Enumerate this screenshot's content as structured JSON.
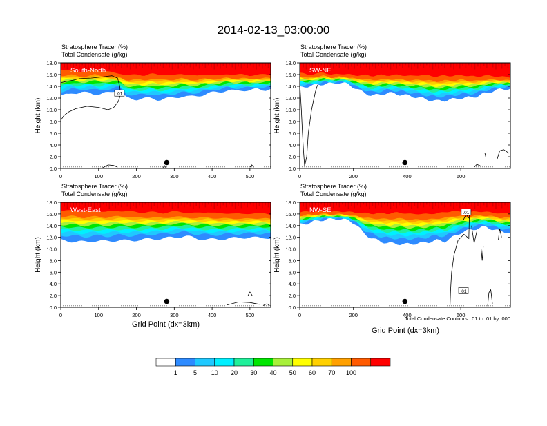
{
  "title": "2014-02-13_03:00:00",
  "chart_data": [
    {
      "type": "heatmap",
      "panel_label": "South-North",
      "subtitle_line1": "Stratosphere Tracer   (%)",
      "subtitle_line2": "Total Condensate   (g/kg)",
      "xlabel": "",
      "ylabel": "Height (km)",
      "xlim": [
        0,
        555
      ],
      "xticks": [
        0,
        100,
        200,
        300,
        400,
        500
      ],
      "ylim": [
        0,
        18
      ],
      "yticks": [
        "0.0",
        "2.0",
        "4.0",
        "6.0",
        "8.0",
        "10.0",
        "12.0",
        "14.0",
        "16.0",
        "18.0"
      ],
      "profile": {
        "x": [
          0,
          15,
          30,
          45,
          60,
          75,
          90,
          105,
          120,
          135,
          150,
          160,
          170,
          180,
          200,
          220,
          240,
          260,
          280,
          300,
          320,
          340,
          360,
          380,
          400,
          420,
          440,
          460,
          480,
          500,
          520,
          540,
          555
        ],
        "top": [
          16.4,
          16.3,
          16.4,
          16.2,
          16.0,
          16.2,
          16.5,
          16.3,
          16.2,
          16.0,
          15.9,
          15.8,
          15.6,
          15.5,
          15.7,
          15.5,
          15.8,
          15.6,
          15.7,
          15.5,
          15.8,
          15.6,
          15.4,
          15.7,
          15.6,
          15.5,
          15.8,
          15.6,
          15.7,
          15.5,
          15.6,
          15.7,
          15.6
        ],
        "base": [
          12.2,
          12.8,
          13.0,
          12.6,
          12.9,
          13.1,
          12.7,
          12.5,
          12.9,
          13.2,
          13.4,
          13.0,
          12.1,
          12.0,
          11.8,
          11.9,
          12.0,
          11.7,
          11.9,
          12.1,
          12.3,
          12.2,
          12.4,
          12.6,
          12.9,
          13.1,
          13.3,
          13.2,
          13.4,
          13.3,
          13.5,
          13.4,
          13.6
        ]
      },
      "condensate_contours": [
        [
          [
            0,
            8.2
          ],
          [
            8,
            9.0
          ],
          [
            20,
            9.6
          ],
          [
            40,
            10.2
          ],
          [
            70,
            10.6
          ],
          [
            100,
            10.4
          ],
          [
            125,
            10.0
          ],
          [
            140,
            10.4
          ],
          [
            152,
            11.4
          ],
          [
            158,
            12.6
          ],
          [
            156,
            14.0
          ],
          [
            150,
            15.4
          ],
          [
            135,
            15.8
          ],
          [
            110,
            15.6
          ],
          [
            80,
            15.4
          ],
          [
            50,
            15.3
          ],
          [
            30,
            15.0
          ],
          [
            12,
            14.8
          ],
          [
            0,
            14.6
          ]
        ],
        [
          [
            110,
            0.1
          ],
          [
            125,
            0.6
          ],
          [
            140,
            0.5
          ],
          [
            150,
            0.2
          ]
        ],
        [
          [
            270,
            0.1
          ],
          [
            274,
            0.5
          ],
          [
            278,
            0.1
          ]
        ],
        [
          [
            500,
            0.2
          ],
          [
            505,
            0.6
          ],
          [
            510,
            0.2
          ]
        ]
      ],
      "contour_labels": [
        {
          "x": 155,
          "y": 12.8,
          "text": ".01"
        }
      ],
      "marker": {
        "x": 280,
        "y": 1.0
      }
    },
    {
      "type": "heatmap",
      "panel_label": "SW-NE",
      "subtitle_line1": "Stratosphere Tracer   (%)",
      "subtitle_line2": "Total Condensate   (g/kg)",
      "xlabel": "",
      "ylabel": "Height (km)",
      "xlim": [
        0,
        785
      ],
      "xticks": [
        0,
        200,
        400,
        600
      ],
      "ylim": [
        0,
        18
      ],
      "yticks": [
        "0.0",
        "2.0",
        "4.0",
        "6.0",
        "8.0",
        "10.0",
        "12.0",
        "14.0",
        "16.0",
        "18.0"
      ],
      "profile": {
        "x": [
          0,
          30,
          60,
          90,
          120,
          150,
          180,
          210,
          240,
          270,
          300,
          330,
          360,
          390,
          420,
          450,
          480,
          510,
          540,
          570,
          600,
          630,
          660,
          690,
          720,
          750,
          785
        ],
        "top": [
          16.0,
          15.6,
          15.8,
          16.0,
          15.6,
          15.8,
          15.7,
          15.5,
          15.6,
          15.4,
          15.6,
          15.5,
          15.6,
          15.5,
          15.4,
          15.6,
          15.5,
          15.3,
          15.5,
          15.4,
          15.6,
          15.4,
          15.3,
          15.5,
          15.4,
          15.3,
          15.2
        ],
        "base": [
          13.8,
          14.0,
          14.2,
          14.4,
          14.5,
          14.6,
          14.4,
          13.6,
          12.9,
          12.4,
          12.6,
          12.9,
          12.7,
          12.5,
          12.3,
          12.0,
          11.7,
          11.5,
          11.6,
          11.8,
          12.0,
          12.1,
          12.3,
          12.8,
          13.2,
          13.5,
          13.6
        ]
      },
      "condensate_contours": [
        [
          [
            0,
            14.6
          ],
          [
            6,
            10.0
          ],
          [
            10,
            6.0
          ],
          [
            14,
            3.0
          ],
          [
            18,
            0.4
          ],
          [
            26,
            2.0
          ],
          [
            32,
            6.0
          ],
          [
            44,
            10.0
          ],
          [
            58,
            13.0
          ],
          [
            66,
            14.2
          ]
        ],
        [
          [
            650,
            0.2
          ],
          [
            660,
            0.7
          ],
          [
            675,
            0.4
          ]
        ],
        [
          [
            735,
            1.5
          ],
          [
            745,
            3.0
          ],
          [
            760,
            3.2
          ],
          [
            780,
            2.6
          ]
        ],
        [
          [
            690,
            2.6
          ],
          [
            693,
            2.0
          ]
        ]
      ],
      "contour_labels": [],
      "marker": {
        "x": 392,
        "y": 1.0
      }
    },
    {
      "type": "heatmap",
      "panel_label": "West-East",
      "subtitle_line1": "Stratosphere Tracer   (%)",
      "subtitle_line2": "Total Condensate   (g/kg)",
      "xlabel": "Grid Point (dx=3km)",
      "ylabel": "Height (km)",
      "xlim": [
        0,
        555
      ],
      "xticks": [
        0,
        100,
        200,
        300,
        400,
        500
      ],
      "ylim": [
        0,
        18
      ],
      "yticks": [
        "0.0",
        "2.0",
        "4.0",
        "6.0",
        "8.0",
        "10.0",
        "12.0",
        "14.0",
        "16.0",
        "18.0"
      ],
      "profile": {
        "x": [
          0,
          30,
          60,
          90,
          120,
          150,
          180,
          210,
          240,
          270,
          300,
          330,
          360,
          390,
          420,
          450,
          480,
          510,
          540,
          555
        ],
        "top": [
          16.1,
          16.3,
          16.0,
          16.2,
          16.0,
          16.2,
          16.1,
          15.9,
          16.0,
          15.8,
          16.1,
          15.9,
          15.8,
          16.0,
          15.7,
          15.8,
          15.6,
          15.8,
          15.7,
          15.6
        ],
        "base": [
          11.5,
          11.3,
          11.2,
          11.4,
          11.3,
          11.5,
          11.4,
          11.6,
          11.7,
          11.8,
          12.0,
          12.2,
          11.8,
          11.6,
          11.7,
          11.8,
          12.0,
          11.9,
          12.0,
          11.8
        ]
      },
      "condensate_contours": [
        [
          [
            440,
            0.4
          ],
          [
            470,
            0.9
          ],
          [
            500,
            0.8
          ],
          [
            525,
            0.5
          ]
        ],
        [
          [
            495,
            2.0
          ],
          [
            500,
            2.6
          ],
          [
            506,
            2.0
          ]
        ],
        [
          [
            535,
            0.3
          ],
          [
            545,
            0.6
          ],
          [
            552,
            0.3
          ]
        ]
      ],
      "contour_labels": [],
      "marker": {
        "x": 280,
        "y": 1.0
      }
    },
    {
      "type": "heatmap",
      "panel_label": "NW-SE",
      "subtitle_line1": "Stratosphere Tracer   (%)",
      "subtitle_line2": "Total Condensate   (g/kg)",
      "xlabel": "Grid Point (dx=3km)",
      "ylabel": "Height (km)",
      "footnote": "Total Condensate Contours: .01 to .01 by .000",
      "xlim": [
        0,
        785
      ],
      "xticks": [
        0,
        200,
        400,
        600
      ],
      "ylim": [
        0,
        18
      ],
      "yticks": [
        "0.0",
        "2.0",
        "4.0",
        "6.0",
        "8.0",
        "10.0",
        "12.0",
        "14.0",
        "16.0",
        "18.0"
      ],
      "profile": {
        "x": [
          0,
          30,
          60,
          90,
          120,
          150,
          180,
          210,
          240,
          270,
          300,
          330,
          360,
          390,
          420,
          450,
          480,
          510,
          540,
          570,
          600,
          630,
          660,
          690,
          720,
          750,
          785
        ],
        "top": [
          15.9,
          16.1,
          16.0,
          16.2,
          16.0,
          16.1,
          16.0,
          15.9,
          15.8,
          15.7,
          15.8,
          15.7,
          15.9,
          15.8,
          15.6,
          15.7,
          15.6,
          15.8,
          15.9,
          16.2,
          16.0,
          15.9,
          16.1,
          16.0,
          15.9,
          15.7,
          15.8
        ],
        "base": [
          14.2,
          14.4,
          14.8,
          15.0,
          15.2,
          15.1,
          15.0,
          14.2,
          12.6,
          11.8,
          11.3,
          11.0,
          10.9,
          10.8,
          10.9,
          11.0,
          11.2,
          11.5,
          11.3,
          12.0,
          12.8,
          13.2,
          13.5,
          13.8,
          13.4,
          13.0,
          12.8
        ]
      },
      "condensate_contours": [
        [
          [
            560,
            0.2
          ],
          [
            562,
            3.0
          ],
          [
            566,
            6.0
          ],
          [
            575,
            9.0
          ],
          [
            590,
            11.5
          ],
          [
            612,
            12.5
          ],
          [
            630,
            11.8
          ],
          [
            632,
            15.8
          ]
        ],
        [
          [
            610,
            15.0
          ],
          [
            620,
            15.9
          ],
          [
            632,
            15.2
          ]
        ],
        [
          [
            640,
            14.0
          ],
          [
            650,
            11.0
          ],
          [
            660,
            13.0
          ]
        ],
        [
          [
            675,
            10.5
          ],
          [
            680,
            8.0
          ],
          [
            684,
            10.5
          ]
        ],
        [
          [
            700,
            0.2
          ],
          [
            705,
            2.5
          ],
          [
            712,
            3.0
          ],
          [
            718,
            0.6
          ]
        ],
        [
          [
            740,
            11.5
          ],
          [
            745,
            13.5
          ],
          [
            752,
            12.0
          ]
        ]
      ],
      "contour_labels": [
        {
          "x": 610,
          "y": 2.8,
          "text": ".01"
        },
        {
          "x": 620,
          "y": 16.3,
          "text": ".01"
        }
      ],
      "marker": {
        "x": 392,
        "y": 1.0
      }
    }
  ],
  "colorbar": {
    "colors": [
      "#ffffff",
      "#2e8bff",
      "#1fc9ff",
      "#00f0ff",
      "#1ff09a",
      "#00e600",
      "#a8f03a",
      "#ffff00",
      "#ffd000",
      "#ffa000",
      "#ff5a00",
      "#ff0000"
    ],
    "labels": [
      "1",
      "5",
      "10",
      "20",
      "30",
      "40",
      "50",
      "60",
      "70",
      "100"
    ]
  }
}
